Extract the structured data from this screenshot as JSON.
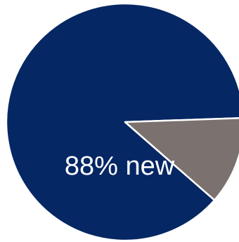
{
  "chart_data": {
    "type": "pie",
    "title": "",
    "slices": [
      {
        "value": 88,
        "color": "#052763",
        "label": "88% new"
      },
      {
        "value": 12,
        "color": "#7b716f",
        "label": ""
      }
    ],
    "start_angle_deg": -2,
    "direction": "counterclockwise",
    "border_color": "#ffffff"
  }
}
